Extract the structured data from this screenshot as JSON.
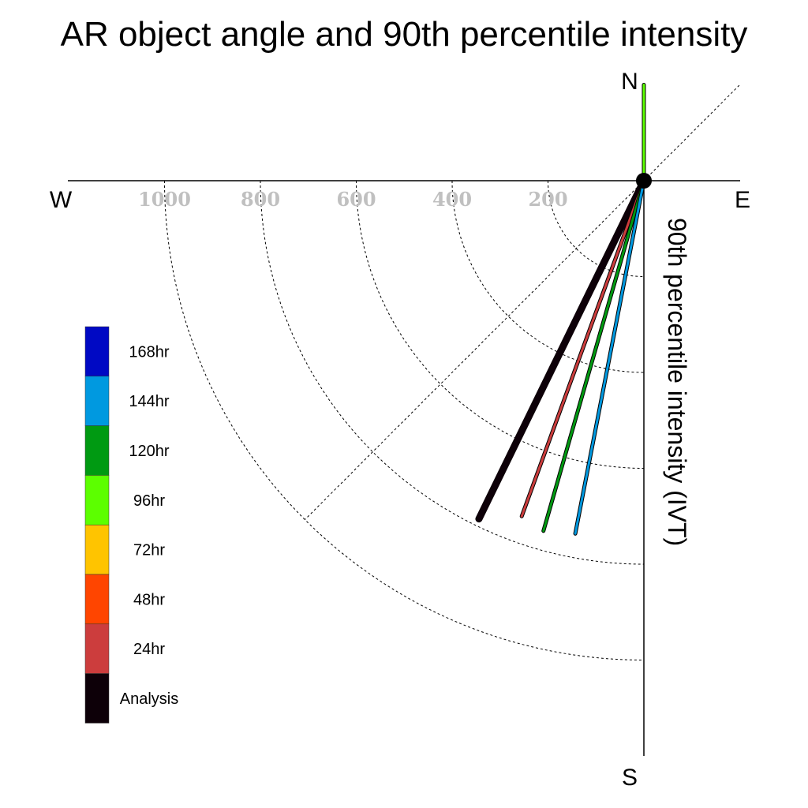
{
  "chart_data": {
    "type": "polar-vector",
    "title": "AR object angle and 90th percentile intensity",
    "ylabel": "90th percentile intensity (IVT)",
    "compass": {
      "north": "N",
      "south": "S",
      "east": "E",
      "west": "W"
    },
    "radial_ticks": [
      200,
      400,
      600,
      800,
      1000
    ],
    "radial_max": 1000,
    "grid": true,
    "legend": [
      {
        "label": "168hr",
        "color": "#0009c4"
      },
      {
        "label": "144hr",
        "color": "#0099e0"
      },
      {
        "label": "120hr",
        "color": "#009a12"
      },
      {
        "label": "96hr",
        "color": "#5cff00"
      },
      {
        "label": "72hr",
        "color": "#ffc400"
      },
      {
        "label": "48hr",
        "color": "#ff4500"
      },
      {
        "label": "24hr",
        "color": "#cc3d3d"
      },
      {
        "label": "Analysis",
        "color": "#0d0008"
      }
    ],
    "legend_placement": "left",
    "series": [
      {
        "name": "96hr",
        "angle_deg": 0,
        "intensity": 200,
        "color": "#5cff00"
      },
      {
        "name": "Analysis",
        "angle_deg": 206,
        "intensity": 785,
        "color": "#0d0008"
      },
      {
        "name": "24hr",
        "angle_deg": 200,
        "intensity": 745,
        "color": "#cc3d3d"
      },
      {
        "name": "120hr",
        "angle_deg": 196,
        "intensity": 760,
        "color": "#009a12"
      },
      {
        "name": "144hr",
        "angle_deg": 191,
        "intensity": 750,
        "color": "#0099e0"
      }
    ]
  }
}
